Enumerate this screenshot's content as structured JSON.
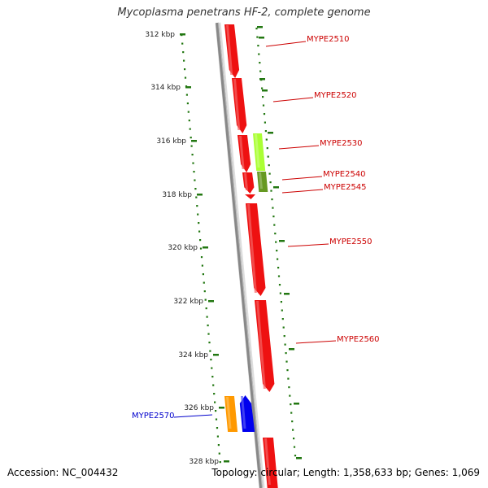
{
  "title": "Mycoplasma penetrans HF-2, complete genome",
  "footer": {
    "accession": "Accession: NC_004432",
    "stats": "Topology: circular; Length: 1,358,633 bp; Genes: 1,069"
  },
  "scale": {
    "unit": "kbp",
    "ticks": [
      "312 kbp",
      "314 kbp",
      "316 kbp",
      "318 kbp",
      "320 kbp",
      "322 kbp",
      "324 kbp",
      "326 kbp",
      "328 kbp"
    ]
  },
  "colors": {
    "gene_red": "#ee1111",
    "gene_light_green": "#aaff33",
    "gene_olive": "#669922",
    "gene_orange": "#ff9900",
    "gene_blue": "#0000ee",
    "label_red": "#cc0000",
    "label_blue": "#0000cc",
    "tick_green": "#227711",
    "backbone": "#888888"
  },
  "genes": [
    {
      "label": "MYPE2510",
      "strand": "+",
      "color": "gene_red"
    },
    {
      "label": "MYPE2520",
      "strand": "+",
      "color": "gene_red"
    },
    {
      "label": "MYPE2530",
      "strand": "+",
      "color": "gene_red"
    },
    {
      "label": "",
      "strand": "+",
      "color": "gene_light_green"
    },
    {
      "label": "MYPE2540",
      "strand": "+",
      "color": "gene_red"
    },
    {
      "label": "",
      "strand": "+",
      "color": "gene_olive"
    },
    {
      "label": "MYPE2545",
      "strand": "+",
      "color": "gene_red"
    },
    {
      "label": "MYPE2550",
      "strand": "+",
      "color": "gene_red"
    },
    {
      "label": "MYPE2560",
      "strand": "+",
      "color": "gene_red"
    },
    {
      "label": "MYPE2570",
      "strand": "-",
      "color": "gene_orange"
    },
    {
      "label": "",
      "strand": "-",
      "color": "gene_blue"
    },
    {
      "label": "",
      "strand": "+",
      "color": "gene_red"
    }
  ]
}
